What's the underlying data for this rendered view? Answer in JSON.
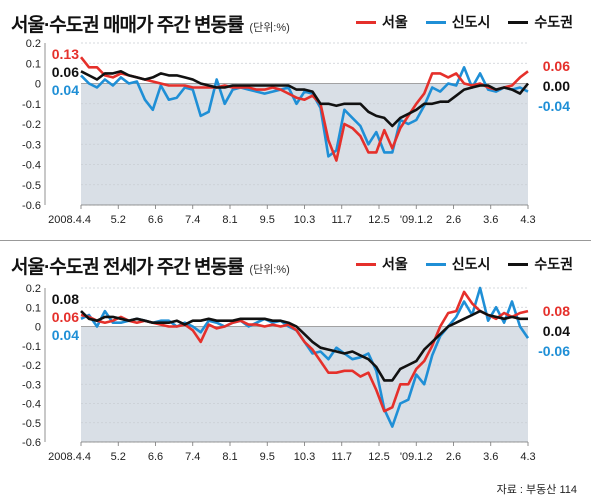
{
  "source": "자료 : 부동산 114",
  "colors": {
    "seoul": "#e5302b",
    "newtown": "#1f8fd6",
    "capital": "#111111",
    "shade": "#d9dfe6"
  },
  "chart_data": [
    {
      "type": "line",
      "title": "서울·수도권 매매가 주간 변동률",
      "unit": "(단위:%)",
      "ylim": [
        -0.6,
        0.2
      ],
      "yticks": [
        "0.2",
        "0.1",
        "0",
        "-0.1",
        "-0.2",
        "-0.3",
        "-0.4",
        "-0.5",
        "-0.6"
      ],
      "xticks": [
        "2008.4.4",
        "5.2",
        "6.6",
        "7.4",
        "8.1",
        "9.5",
        "10.3",
        "11.7",
        "12.5",
        "'09.1.2",
        "2.6",
        "3.6",
        "4.3"
      ],
      "legend": [
        "서울",
        "신도시",
        "수도권"
      ],
      "start_labels": [
        {
          "series": "서울",
          "text": "0.13"
        },
        {
          "series": "수도권",
          "text": "0.06"
        },
        {
          "series": "신도시",
          "text": "0.04"
        }
      ],
      "end_labels": [
        {
          "series": "서울",
          "text": "0.06"
        },
        {
          "series": "수도권",
          "text": "0.00"
        },
        {
          "series": "신도시",
          "text": "-0.04"
        }
      ],
      "series": [
        {
          "name": "서울",
          "color": "#e5302b",
          "values": [
            0.13,
            0.08,
            0.08,
            0.04,
            0.03,
            0.05,
            0.04,
            0.03,
            0.02,
            0.01,
            0.0,
            -0.01,
            -0.01,
            -0.01,
            -0.02,
            -0.02,
            -0.02,
            -0.02,
            -0.01,
            -0.02,
            -0.02,
            -0.02,
            -0.03,
            -0.03,
            -0.02,
            -0.03,
            -0.05,
            -0.07,
            -0.08,
            -0.06,
            -0.1,
            -0.28,
            -0.38,
            -0.2,
            -0.22,
            -0.26,
            -0.34,
            -0.34,
            -0.23,
            -0.32,
            -0.22,
            -0.16,
            -0.1,
            -0.05,
            0.05,
            0.05,
            0.03,
            0.05,
            0.0,
            -0.01,
            0.0,
            -0.02,
            -0.03,
            -0.02,
            -0.01,
            0.03,
            0.06
          ]
        },
        {
          "name": "신도시",
          "color": "#1f8fd6",
          "values": [
            0.04,
            0.0,
            -0.02,
            0.02,
            -0.01,
            0.03,
            0.0,
            0.01,
            -0.08,
            -0.13,
            -0.01,
            -0.08,
            -0.07,
            -0.02,
            -0.03,
            -0.16,
            -0.14,
            0.02,
            -0.1,
            -0.03,
            -0.02,
            -0.03,
            -0.04,
            -0.05,
            -0.04,
            -0.03,
            -0.02,
            -0.1,
            -0.04,
            -0.05,
            -0.12,
            -0.36,
            -0.33,
            -0.13,
            -0.17,
            -0.21,
            -0.3,
            -0.24,
            -0.34,
            -0.34,
            -0.18,
            -0.2,
            -0.18,
            -0.11,
            -0.02,
            -0.04,
            0.0,
            -0.01,
            0.08,
            -0.02,
            0.05,
            -0.03,
            -0.04,
            -0.02,
            -0.03,
            -0.02,
            -0.04
          ]
        },
        {
          "name": "수도권",
          "color": "#111111",
          "values": [
            0.06,
            0.04,
            0.02,
            0.05,
            0.05,
            0.06,
            0.04,
            0.03,
            0.02,
            0.03,
            0.05,
            0.04,
            0.04,
            0.03,
            0.02,
            0.0,
            -0.01,
            -0.02,
            -0.02,
            -0.01,
            -0.01,
            -0.01,
            -0.01,
            -0.01,
            -0.01,
            -0.01,
            -0.01,
            -0.03,
            -0.03,
            -0.04,
            -0.1,
            -0.1,
            -0.11,
            -0.1,
            -0.1,
            -0.1,
            -0.14,
            -0.16,
            -0.17,
            -0.21,
            -0.17,
            -0.15,
            -0.13,
            -0.1,
            -0.1,
            -0.09,
            -0.09,
            -0.06,
            -0.03,
            -0.02,
            -0.01,
            -0.01,
            -0.03,
            -0.02,
            -0.03,
            -0.05,
            0.0
          ]
        }
      ]
    },
    {
      "type": "line",
      "title": "서울·수도권 전세가 주간 변동률",
      "unit": "(단위:%)",
      "ylim": [
        -0.6,
        0.2
      ],
      "yticks": [
        "0.2",
        "0.1",
        "0",
        "-0.1",
        "-0.2",
        "-0.3",
        "-0.4",
        "-0.5",
        "-0.6"
      ],
      "xticks": [
        "2008.4.4",
        "5.2",
        "6.6",
        "7.4",
        "8.1",
        "9.5",
        "10.3",
        "11.7",
        "12.5",
        "'09.1.2",
        "2.6",
        "3.6",
        "4.3"
      ],
      "legend": [
        "서울",
        "신도시",
        "수도권"
      ],
      "start_labels": [
        {
          "series": "수도권",
          "text": "0.08"
        },
        {
          "series": "서울",
          "text": "0.06"
        },
        {
          "series": "신도시",
          "text": "0.04"
        }
      ],
      "end_labels": [
        {
          "series": "서울",
          "text": "0.08"
        },
        {
          "series": "수도권",
          "text": "0.04"
        },
        {
          "series": "신도시",
          "text": "-0.06"
        }
      ],
      "series": [
        {
          "name": "서울",
          "color": "#e5302b",
          "values": [
            0.06,
            0.05,
            0.03,
            0.02,
            0.03,
            0.05,
            0.03,
            0.02,
            0.03,
            0.02,
            0.01,
            0.0,
            0.0,
            0.01,
            -0.02,
            -0.08,
            0.01,
            -0.01,
            0.0,
            0.02,
            0.03,
            0.01,
            0.01,
            0.0,
            0.01,
            0.0,
            0.01,
            -0.02,
            -0.08,
            -0.12,
            -0.18,
            -0.24,
            -0.24,
            -0.23,
            -0.23,
            -0.26,
            -0.24,
            -0.33,
            -0.44,
            -0.42,
            -0.3,
            -0.3,
            -0.22,
            -0.18,
            -0.1,
            0.0,
            0.07,
            0.08,
            0.18,
            0.12,
            0.08,
            0.06,
            0.04,
            0.07,
            0.05,
            0.07,
            0.08
          ]
        },
        {
          "name": "신도시",
          "color": "#1f8fd6",
          "values": [
            0.04,
            0.06,
            0.0,
            0.08,
            0.02,
            0.02,
            0.03,
            0.04,
            0.03,
            0.02,
            0.03,
            0.03,
            0.0,
            0.02,
            0.0,
            -0.03,
            0.03,
            0.02,
            0.0,
            0.02,
            0.03,
            0.0,
            0.02,
            0.04,
            0.02,
            0.03,
            0.0,
            -0.02,
            -0.08,
            -0.14,
            -0.13,
            -0.17,
            -0.11,
            -0.14,
            -0.17,
            -0.16,
            -0.14,
            -0.23,
            -0.43,
            -0.52,
            -0.4,
            -0.38,
            -0.25,
            -0.3,
            -0.15,
            -0.05,
            0.0,
            0.05,
            0.13,
            0.06,
            0.2,
            0.03,
            0.1,
            0.02,
            0.13,
            0.0,
            -0.06
          ]
        },
        {
          "name": "수도권",
          "color": "#111111",
          "values": [
            0.08,
            0.04,
            0.03,
            0.05,
            0.05,
            0.04,
            0.03,
            0.04,
            0.03,
            0.02,
            0.02,
            0.02,
            0.03,
            0.01,
            0.03,
            0.03,
            0.04,
            0.03,
            0.03,
            0.03,
            0.04,
            0.04,
            0.04,
            0.04,
            0.03,
            0.03,
            0.02,
            0.0,
            -0.04,
            -0.08,
            -0.11,
            -0.12,
            -0.13,
            -0.14,
            -0.13,
            -0.15,
            -0.17,
            -0.21,
            -0.28,
            -0.28,
            -0.22,
            -0.2,
            -0.18,
            -0.12,
            -0.08,
            -0.04,
            0.0,
            0.02,
            0.04,
            0.06,
            0.08,
            0.06,
            0.05,
            0.04,
            0.05,
            0.04,
            0.04
          ]
        }
      ]
    }
  ]
}
